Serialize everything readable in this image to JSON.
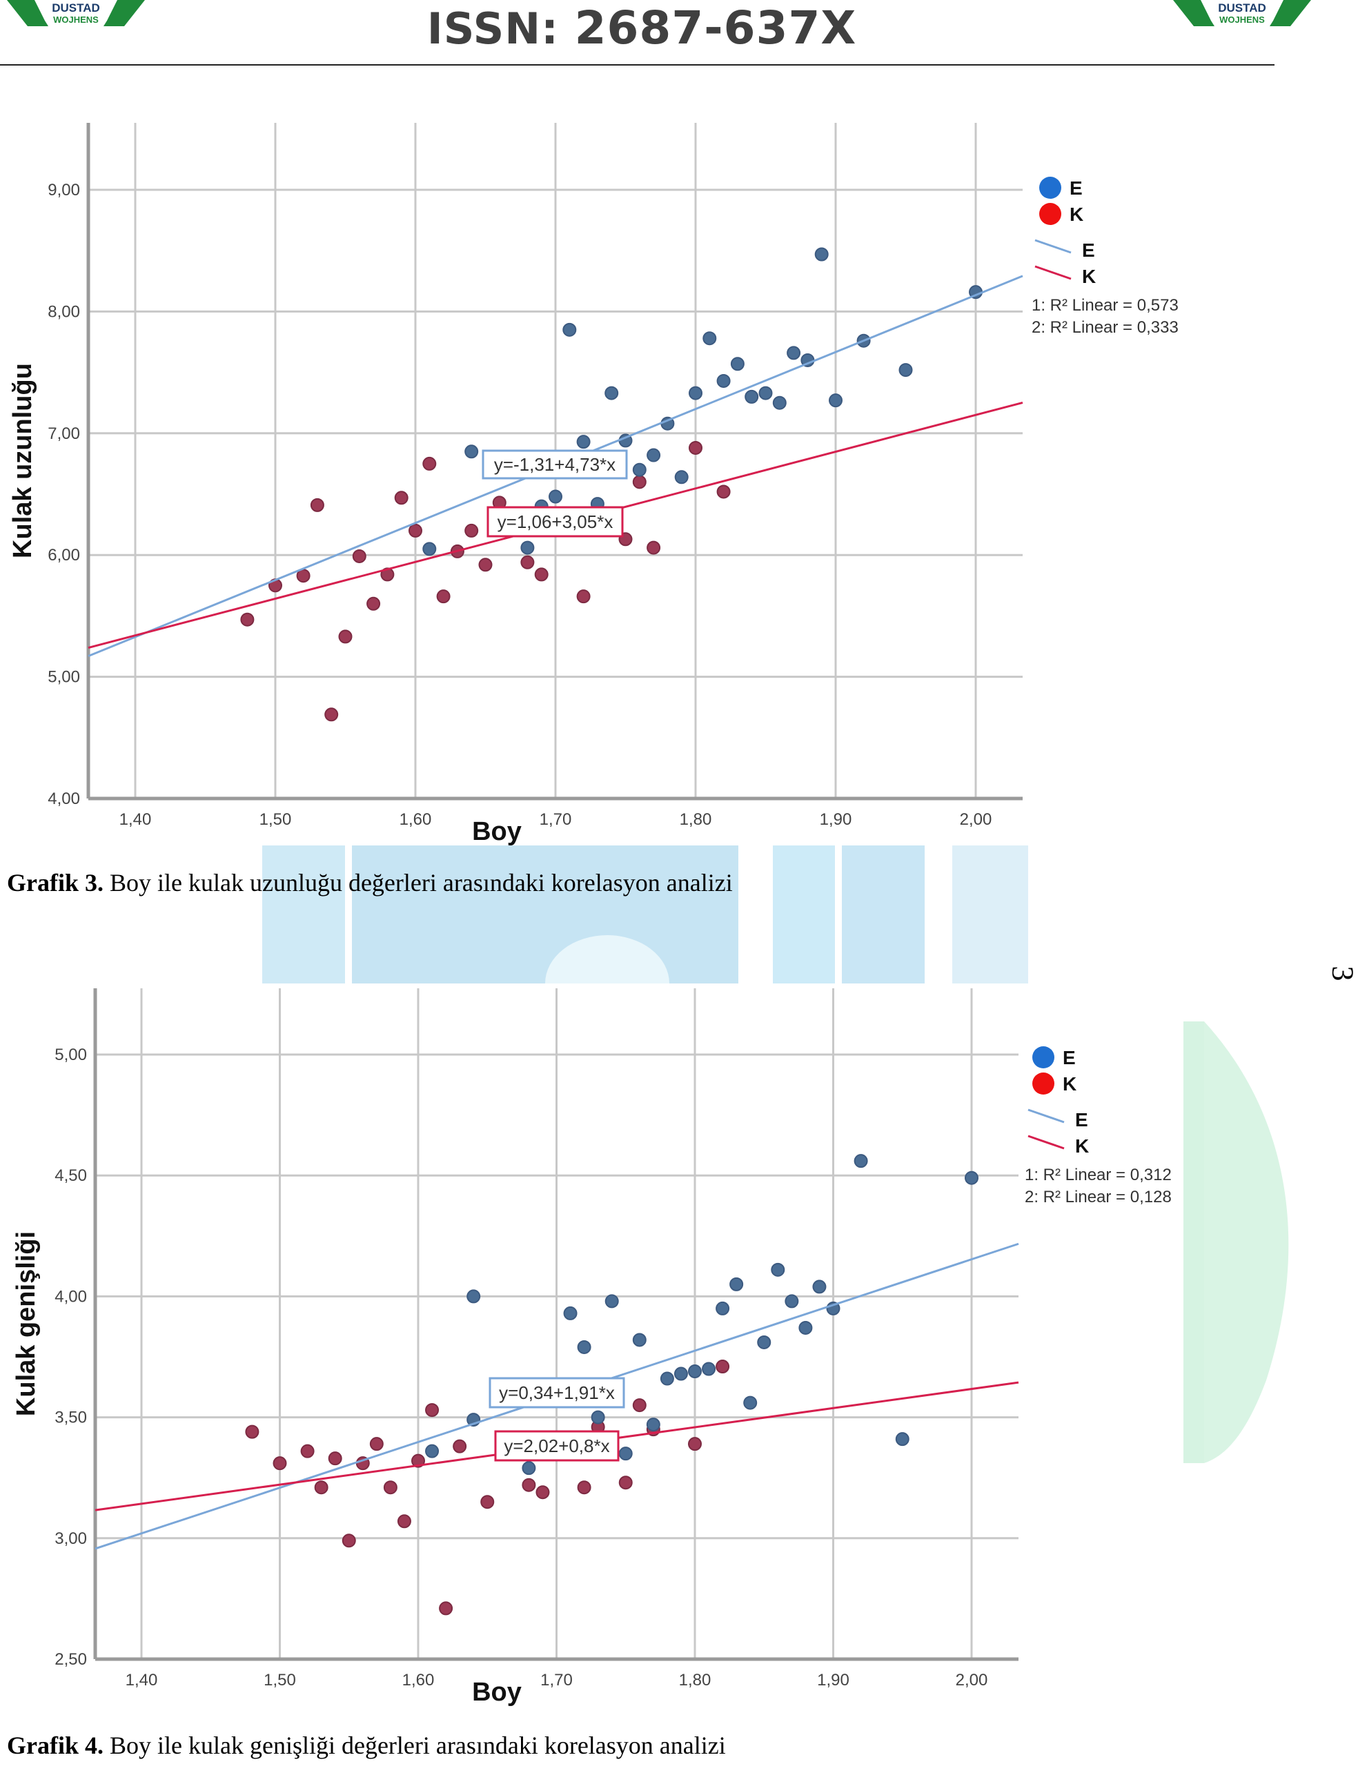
{
  "header": {
    "issn_prefix": "ISSN:",
    "issn_number": "2687-637X",
    "logo_text_top": "DUSTAD",
    "logo_text_bottom": "WOJHENS"
  },
  "side_page_mark": "3",
  "colors": {
    "male_point": "#4a6d94",
    "female_point": "#9c3a55",
    "male_line": "#7aa6d8",
    "female_line": "#d61f4e",
    "legend_male_dot": "#1f6fd0",
    "legend_female_dot": "#ee1111",
    "grid": "#c8c8c8",
    "axis": "#9a9a9a"
  },
  "captions": [
    {
      "label": "Grafik 3.",
      "text": " Boy ile kulak uzunluğu değerleri arasındaki korelasyon analizi"
    },
    {
      "label": "Grafik 4.",
      "text": " Boy ile kulak genişliği değerleri arasındaki korelasyon analizi"
    }
  ],
  "chart_data": [
    {
      "type": "scatter",
      "title": "Grafik 3. Boy ile kulak uzunluğu değerleri arasındaki korelasyon analizi",
      "xlabel": "Boy",
      "ylabel": "Kulak uzunluğu",
      "xlim": [
        1.37,
        2.03
      ],
      "ylim": [
        4.0,
        9.5
      ],
      "xticks": [
        1.4,
        1.5,
        1.6,
        1.7,
        1.8,
        1.9,
        2.0
      ],
      "xtick_labels": [
        "1,40",
        "1,50",
        "1,60",
        "1,70",
        "1,80",
        "1,90",
        "2,00"
      ],
      "yticks": [
        4.0,
        5.0,
        6.0,
        7.0,
        8.0,
        9.0
      ],
      "ytick_labels": [
        "4,00",
        "5,00",
        "6,00",
        "7,00",
        "8,00",
        "9,00"
      ],
      "grid": true,
      "legend_position": "right",
      "legend": {
        "points": [
          "E",
          "K"
        ],
        "lines": [
          "E",
          "K"
        ],
        "r2": [
          "1: R² Linear = 0,573",
          "2: R² Linear = 0,333"
        ]
      },
      "series": [
        {
          "name": "E",
          "fit": {
            "intercept": -1.31,
            "slope": 4.73,
            "label": "y=-1,31+4,73*x",
            "r2": 0.573
          },
          "points": [
            [
              1.61,
              6.05
            ],
            [
              1.64,
              6.85
            ],
            [
              1.68,
              6.06
            ],
            [
              1.69,
              6.4
            ],
            [
              1.7,
              6.48
            ],
            [
              1.71,
              7.85
            ],
            [
              1.72,
              6.93
            ],
            [
              1.73,
              6.42
            ],
            [
              1.74,
              7.33
            ],
            [
              1.75,
              6.94
            ],
            [
              1.76,
              6.7
            ],
            [
              1.77,
              6.82
            ],
            [
              1.78,
              7.08
            ],
            [
              1.79,
              6.64
            ],
            [
              1.8,
              7.33
            ],
            [
              1.81,
              7.78
            ],
            [
              1.82,
              7.43
            ],
            [
              1.83,
              7.57
            ],
            [
              1.84,
              7.3
            ],
            [
              1.85,
              7.33
            ],
            [
              1.86,
              7.25
            ],
            [
              1.87,
              7.66
            ],
            [
              1.88,
              7.6
            ],
            [
              1.89,
              8.47
            ],
            [
              1.9,
              7.27
            ],
            [
              1.92,
              7.76
            ],
            [
              1.95,
              7.52
            ],
            [
              2.0,
              8.16
            ]
          ]
        },
        {
          "name": "K",
          "fit": {
            "intercept": 1.06,
            "slope": 3.05,
            "label": "y=1,06+3,05*x",
            "r2": 0.333
          },
          "points": [
            [
              1.48,
              5.47
            ],
            [
              1.5,
              5.75
            ],
            [
              1.52,
              5.83
            ],
            [
              1.53,
              6.41
            ],
            [
              1.54,
              4.69
            ],
            [
              1.55,
              5.33
            ],
            [
              1.56,
              5.99
            ],
            [
              1.57,
              5.6
            ],
            [
              1.58,
              5.84
            ],
            [
              1.59,
              6.47
            ],
            [
              1.6,
              6.2
            ],
            [
              1.61,
              6.75
            ],
            [
              1.62,
              5.66
            ],
            [
              1.63,
              6.03
            ],
            [
              1.64,
              6.2
            ],
            [
              1.65,
              5.92
            ],
            [
              1.66,
              6.43
            ],
            [
              1.68,
              5.94
            ],
            [
              1.69,
              5.84
            ],
            [
              1.72,
              5.66
            ],
            [
              1.75,
              6.13
            ],
            [
              1.76,
              6.6
            ],
            [
              1.77,
              6.06
            ],
            [
              1.8,
              6.88
            ],
            [
              1.82,
              6.52
            ]
          ]
        }
      ]
    },
    {
      "type": "scatter",
      "title": "Grafik 4. Boy ile kulak genişliği değerleri arasındaki korelasyon analizi",
      "xlabel": "Boy",
      "ylabel": "Kulak genişliği",
      "xlim": [
        1.37,
        2.03
      ],
      "ylim": [
        2.5,
        5.25
      ],
      "xticks": [
        1.4,
        1.5,
        1.6,
        1.7,
        1.8,
        1.9,
        2.0
      ],
      "xtick_labels": [
        "1,40",
        "1,50",
        "1,60",
        "1,70",
        "1,80",
        "1,90",
        "2,00"
      ],
      "yticks": [
        2.5,
        3.0,
        3.5,
        4.0,
        4.5,
        5.0
      ],
      "ytick_labels": [
        "2,50",
        "3,00",
        "3,50",
        "4,00",
        "4,50",
        "5,00"
      ],
      "grid": true,
      "legend_position": "right",
      "legend": {
        "points": [
          "E",
          "K"
        ],
        "lines": [
          "E",
          "K"
        ],
        "r2": [
          "1: R² Linear = 0,312",
          "2: R² Linear = 0,128"
        ]
      },
      "series": [
        {
          "name": "E",
          "fit": {
            "intercept": 0.34,
            "slope": 1.91,
            "label": "y=0,34+1,91*x",
            "r2": 0.312
          },
          "points": [
            [
              1.61,
              3.36
            ],
            [
              1.64,
              4.0
            ],
            [
              1.64,
              3.49
            ],
            [
              1.68,
              3.29
            ],
            [
              1.71,
              3.93
            ],
            [
              1.72,
              3.79
            ],
            [
              1.73,
              3.5
            ],
            [
              1.74,
              3.98
            ],
            [
              1.75,
              3.35
            ],
            [
              1.76,
              3.82
            ],
            [
              1.77,
              3.47
            ],
            [
              1.78,
              3.66
            ],
            [
              1.79,
              3.68
            ],
            [
              1.8,
              3.69
            ],
            [
              1.81,
              3.7
            ],
            [
              1.82,
              3.95
            ],
            [
              1.83,
              4.05
            ],
            [
              1.84,
              3.56
            ],
            [
              1.85,
              3.81
            ],
            [
              1.86,
              4.11
            ],
            [
              1.87,
              3.98
            ],
            [
              1.88,
              3.87
            ],
            [
              1.89,
              4.04
            ],
            [
              1.9,
              3.95
            ],
            [
              1.92,
              4.56
            ],
            [
              1.95,
              3.41
            ],
            [
              2.0,
              4.49
            ]
          ]
        },
        {
          "name": "K",
          "fit": {
            "intercept": 2.02,
            "slope": 0.8,
            "label": "y=2,02+0,8*x",
            "r2": 0.128
          },
          "points": [
            [
              1.48,
              3.44
            ],
            [
              1.5,
              3.31
            ],
            [
              1.52,
              3.36
            ],
            [
              1.53,
              3.21
            ],
            [
              1.54,
              3.33
            ],
            [
              1.55,
              2.99
            ],
            [
              1.56,
              3.31
            ],
            [
              1.57,
              3.39
            ],
            [
              1.58,
              3.21
            ],
            [
              1.59,
              3.07
            ],
            [
              1.6,
              3.32
            ],
            [
              1.61,
              3.53
            ],
            [
              1.62,
              2.71
            ],
            [
              1.63,
              3.38
            ],
            [
              1.65,
              3.15
            ],
            [
              1.68,
              3.22
            ],
            [
              1.69,
              3.19
            ],
            [
              1.72,
              3.21
            ],
            [
              1.73,
              3.46
            ],
            [
              1.75,
              3.23
            ],
            [
              1.76,
              3.55
            ],
            [
              1.77,
              3.45
            ],
            [
              1.8,
              3.39
            ],
            [
              1.82,
              3.71
            ]
          ]
        }
      ]
    }
  ]
}
